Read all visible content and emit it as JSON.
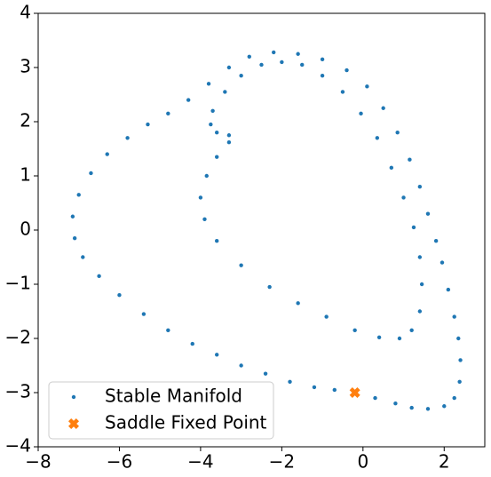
{
  "chart_data": {
    "type": "scatter",
    "xlim": [
      -8,
      3
    ],
    "ylim": [
      -4,
      4
    ],
    "xticks": [
      {
        "value": -8,
        "label": "−8"
      },
      {
        "value": -6,
        "label": "−6"
      },
      {
        "value": -4,
        "label": "−4"
      },
      {
        "value": -2,
        "label": "−2"
      },
      0,
      2
    ],
    "yticks": [
      {
        "value": -4,
        "label": "−4"
      },
      {
        "value": -3,
        "label": "−3"
      },
      {
        "value": -2,
        "label": "−2"
      },
      {
        "value": -1,
        "label": "−1"
      },
      0,
      1,
      2,
      3,
      4
    ],
    "grid": false,
    "legend": "lower left",
    "series": [
      {
        "name": "Stable Manifold",
        "color": "#1f77b4",
        "marker": "dot",
        "x": [
          -0.2,
          0.3,
          0.8,
          1.2,
          1.6,
          2.0,
          2.25,
          2.38,
          2.4,
          2.35,
          2.25,
          2.1,
          1.95,
          1.8,
          1.6,
          1.4,
          1.15,
          0.85,
          0.5,
          0.1,
          -0.4,
          -1.0,
          -1.6,
          -2.2,
          -2.8,
          -3.3,
          -3.8,
          -4.3,
          -4.8,
          -5.3,
          -5.8,
          -6.3,
          -6.7,
          -7.0,
          -7.15,
          -7.1,
          -6.9,
          -6.5,
          -6.0,
          -5.4,
          -4.8,
          -4.2,
          -3.6,
          -3.0,
          -2.4,
          -1.8,
          -1.2,
          -0.7,
          -3.3,
          -3.6,
          -3.75,
          -3.7,
          -3.4,
          -3.0,
          -2.5,
          -2.0,
          -1.5,
          -1.0,
          -0.5,
          -0.05,
          0.35,
          0.7,
          1.0,
          1.25,
          1.4,
          1.45,
          1.4,
          1.2,
          0.9,
          0.4,
          -0.2,
          -0.9,
          -1.6,
          -2.3,
          -3.0,
          -3.6,
          -3.9,
          -4.0,
          -3.85,
          -3.6,
          -3.3
        ],
        "values": [
          -3.0,
          -3.1,
          -3.2,
          -3.28,
          -3.3,
          -3.25,
          -3.1,
          -2.8,
          -2.4,
          -2.0,
          -1.6,
          -1.1,
          -0.6,
          -0.2,
          0.3,
          0.8,
          1.3,
          1.8,
          2.25,
          2.65,
          2.95,
          3.15,
          3.25,
          3.28,
          3.2,
          3.0,
          2.7,
          2.4,
          2.15,
          1.95,
          1.7,
          1.4,
          1.05,
          0.65,
          0.25,
          -0.15,
          -0.5,
          -0.85,
          -1.2,
          -1.55,
          -1.85,
          -2.1,
          -2.3,
          -2.5,
          -2.65,
          -2.8,
          -2.9,
          -2.95,
          1.75,
          1.8,
          1.95,
          2.2,
          2.55,
          2.85,
          3.05,
          3.1,
          3.05,
          2.85,
          2.55,
          2.15,
          1.7,
          1.15,
          0.6,
          0.05,
          -0.5,
          -1.0,
          -1.5,
          -1.85,
          -2.0,
          -1.98,
          -1.85,
          -1.6,
          -1.35,
          -1.05,
          -0.65,
          -0.2,
          0.2,
          0.6,
          1.0,
          1.35,
          1.62
        ]
      },
      {
        "name": "Saddle Fixed Point",
        "color": "#ff7f0e",
        "marker": "x",
        "x": [
          -0.2
        ],
        "values": [
          -3.0
        ]
      }
    ]
  }
}
